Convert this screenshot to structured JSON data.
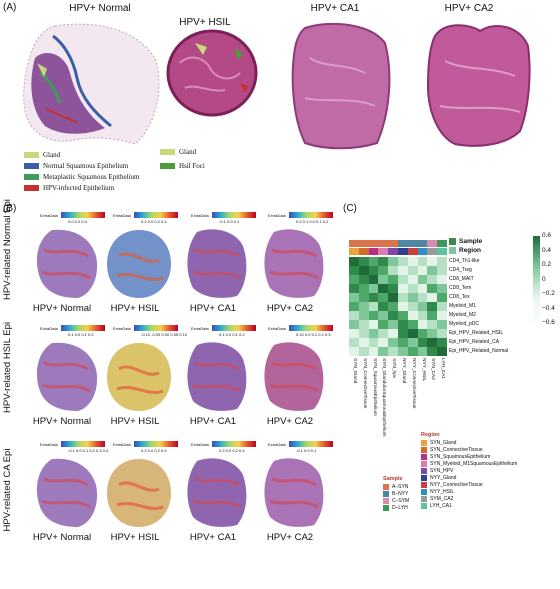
{
  "panel_a": {
    "label": "(A)",
    "titles": [
      "HPV+ Normal",
      "HPV+ HSIL",
      "HPV+ CA1",
      "HPV+ CA2"
    ],
    "normal_legend": [
      {
        "label": "Gland",
        "color": "#c7d97a"
      },
      {
        "label": "Normal Squamous Epithelium",
        "color": "#3a5ea8"
      },
      {
        "label": "Metaplastic Squamous Epithelium",
        "color": "#3f9a5b"
      },
      {
        "label": "HPV-infected Epithelium",
        "color": "#c8302f"
      }
    ],
    "hsil_legend": [
      {
        "label": "Gland",
        "color": "#c7d97a"
      },
      {
        "label": "Hsil Foci",
        "color": "#4f9b3c"
      }
    ]
  },
  "panel_b": {
    "label": "(B)",
    "row_labels": [
      "HPV-related Normal Epi",
      "HPV-related HSIL Epi",
      "HPV-related CA Epi"
    ],
    "col_labels": [
      "HPV+ Normal",
      "HPV+ HSIL",
      "HPV+ CA1",
      "HPV+ CA2"
    ],
    "colorbar_title": "ExtraData",
    "colorbar_ticks": [
      [
        "0.0  0.2  0.4",
        "0.2  0.0  0.2  0.4",
        "-0.1  0.0  0.1",
        "0.2  0.1  0.0  0.1  0.2"
      ],
      [
        "0.1  0.0  0.1  0.2",
        "-0.10 -0.05 0.00 0.05 0.10",
        "0.1  0.0  0.1  0.2",
        "0.10 0.0 0.1 0.2 0.3"
      ],
      [
        "-0.1 0.0 0.1 0.2 0.3 0.4",
        "0.2  0.0  0.2  0.4",
        "0.2  0.0  0.2  0.4",
        "-0.1  0.0  0.1"
      ]
    ]
  },
  "panel_c": {
    "label": "(C)",
    "heatmap_rows": [
      "CD4_Th1-like",
      "CD4_Treg",
      "CD8_MAIT",
      "CD8_Tem",
      "CD8_Tex",
      "Myeloid_M1",
      "Myeloid_M2",
      "Myeloid_pDC",
      "Epi_HPV_Related_HSIL",
      "Epi_HPV_Related_CA",
      "Epi_HPV_Related_Normal"
    ],
    "heatmap_cols": [
      "SYN_Gland",
      "SYN_ConnectiveTissue",
      "SYN_SquamousEpithelium",
      "SYN_GlandularSquamousEpithelium",
      "SYN_hpv",
      "NYY_Gland",
      "NYY_ConnectiveTissue",
      "NYY_HSIL",
      "SYN_CA2",
      "LYH_CA1"
    ],
    "annotation_labels": [
      "Sample",
      "Region"
    ],
    "scale_ticks": [
      "0.6",
      "0.4",
      "0.2",
      "0",
      "−0.2",
      "−0.4",
      "−0.6"
    ],
    "sample_legend_title": "Sample",
    "sample_legend": [
      {
        "label": "A–SYN",
        "color": "#d9744c"
      },
      {
        "label": "B–NYY",
        "color": "#4e87a6"
      },
      {
        "label": "C–SYM",
        "color": "#d98cb0"
      },
      {
        "label": "D–LYH",
        "color": "#3a9a59"
      }
    ],
    "region_legend_title": "Region",
    "region_legend": [
      {
        "label": "SYN_Gland",
        "color": "#e8a33d"
      },
      {
        "label": "SYN_ConnectiveTissue",
        "color": "#d66a2a"
      },
      {
        "label": "SYN_SquamousEpithelium",
        "color": "#b82f86"
      },
      {
        "label": "SYN_Myeloid_M1SquamousEpithelium",
        "color": "#e07bb0"
      },
      {
        "label": "SYN_HPV",
        "color": "#7b4aa8"
      },
      {
        "label": "NYY_Gland",
        "color": "#2f3f8f"
      },
      {
        "label": "NYY_ConnectiveTissue",
        "color": "#cc3d3d"
      },
      {
        "label": "NYY_HSIL",
        "color": "#2f8fc4"
      },
      {
        "label": "SYM_CA2",
        "color": "#9a9a9a"
      },
      {
        "label": "LYH_CA1",
        "color": "#5fc3a3"
      }
    ]
  }
}
